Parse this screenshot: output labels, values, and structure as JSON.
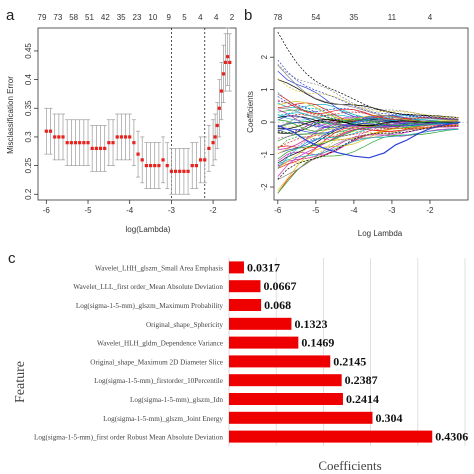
{
  "panels": {
    "a": "a",
    "b": "b",
    "c": "c"
  },
  "chart_data": [
    {
      "panel": "a",
      "type": "scatter",
      "xlabel": "log(Lambda)",
      "ylabel": "Misclassification Error",
      "xlim": [
        -6.2,
        -1.45
      ],
      "ylim": [
        0.19,
        0.49
      ],
      "xticks": [
        -6,
        -5,
        -4,
        -3,
        -2
      ],
      "yticks": [
        0.2,
        0.25,
        0.3,
        0.35,
        0.4,
        0.45
      ],
      "top_axis_labels": [
        "79",
        "73",
        "58",
        "51",
        "42",
        "35",
        "23",
        "10",
        "9",
        "5",
        "4",
        "4",
        "2"
      ],
      "vlines": [
        -3.0,
        -2.2
      ],
      "x": [
        -6.0,
        -5.9,
        -5.8,
        -5.7,
        -5.6,
        -5.5,
        -5.4,
        -5.3,
        -5.2,
        -5.1,
        -5.0,
        -4.9,
        -4.8,
        -4.7,
        -4.6,
        -4.5,
        -4.4,
        -4.3,
        -4.2,
        -4.1,
        -4.0,
        -3.9,
        -3.8,
        -3.7,
        -3.6,
        -3.5,
        -3.4,
        -3.3,
        -3.2,
        -3.1,
        -3.0,
        -2.9,
        -2.8,
        -2.7,
        -2.6,
        -2.5,
        -2.4,
        -2.3,
        -2.2,
        -2.1,
        -2.0,
        -1.95,
        -1.9,
        -1.85,
        -1.8,
        -1.75,
        -1.7,
        -1.65,
        -1.6
      ],
      "y": [
        0.31,
        0.31,
        0.3,
        0.3,
        0.3,
        0.29,
        0.29,
        0.29,
        0.29,
        0.29,
        0.29,
        0.28,
        0.28,
        0.28,
        0.28,
        0.29,
        0.29,
        0.3,
        0.3,
        0.3,
        0.3,
        0.29,
        0.27,
        0.26,
        0.25,
        0.25,
        0.25,
        0.25,
        0.26,
        0.25,
        0.24,
        0.24,
        0.24,
        0.24,
        0.24,
        0.25,
        0.25,
        0.26,
        0.26,
        0.28,
        0.29,
        0.3,
        0.32,
        0.35,
        0.38,
        0.41,
        0.43,
        0.44,
        0.43
      ],
      "err": [
        0.04,
        0.04,
        0.04,
        0.04,
        0.04,
        0.04,
        0.04,
        0.04,
        0.04,
        0.04,
        0.04,
        0.04,
        0.04,
        0.04,
        0.04,
        0.04,
        0.04,
        0.04,
        0.04,
        0.04,
        0.04,
        0.04,
        0.04,
        0.04,
        0.04,
        0.04,
        0.04,
        0.04,
        0.04,
        0.04,
        0.04,
        0.04,
        0.04,
        0.04,
        0.04,
        0.04,
        0.04,
        0.04,
        0.04,
        0.04,
        0.04,
        0.04,
        0.04,
        0.05,
        0.05,
        0.05,
        0.05,
        0.05,
        0.05
      ],
      "point_color": "#e8231e",
      "error_color": "#9a9a9a"
    },
    {
      "panel": "b",
      "type": "line",
      "xlabel": "Log Lambda",
      "ylabel": "Coefficients",
      "xlim": [
        -6.1,
        -1.0
      ],
      "ylim": [
        -2.4,
        2.9
      ],
      "xticks": [
        -6,
        -5,
        -4,
        -3,
        -2
      ],
      "yticks": [
        -2,
        -1,
        0,
        1,
        2
      ],
      "top_axis_labels": [
        "78",
        "54",
        "35",
        "11",
        "4"
      ],
      "top_axis_positions": [
        -6.0,
        -5.0,
        -4.0,
        -3.0,
        -2.0
      ],
      "path_count": 60,
      "path_colors": [
        "#000000",
        "#e8231e",
        "#27a327",
        "#2b3fd6",
        "#16b6c8",
        "#c72fc2",
        "#d9c219",
        "#8a8a8a"
      ],
      "highlight_path": {
        "color": "#2b3fd6",
        "x": [
          -6.0,
          -5.6,
          -5.2,
          -4.8,
          -4.4,
          -4.0,
          -3.6,
          -3.2,
          -2.9,
          -2.6,
          -2.3,
          -2.0,
          -1.6,
          -1.2
        ],
        "y": [
          -0.1,
          -0.3,
          -0.6,
          -0.8,
          -0.95,
          -1.05,
          -1.1,
          -0.95,
          -0.7,
          -0.55,
          -0.35,
          -0.2,
          -0.08,
          0.0
        ]
      }
    },
    {
      "panel": "c",
      "type": "bar",
      "orientation": "horizontal",
      "xlabel": "Coefficients",
      "ylabel": "Feature",
      "xlim": [
        0,
        0.5
      ],
      "grid_x": [
        0.1,
        0.2,
        0.3,
        0.4,
        0.5
      ],
      "bar_color": "#ee0000",
      "categories": [
        "Wavelet_LHH_glszm_Small Area Emphasis",
        "Wavelet_LLL_first order_Mean Absolute Deviation",
        "Log(sigma-1-5-mm)_glszm_Maximum Probability",
        "Original_shape_Sphericity",
        "Wavelet_HLH_gldm_Dependence Variance",
        "Original_shape_Maximum 2D Diameter Slice",
        "Log(sigma-1-5-mm)_firstorder_10Percentile",
        "Log(sigma-1-5-mm)_glszm_Idn",
        "Log(sigma-1-5-mm)_glszm_Joint Energy",
        "Log(sigma-1-5-mm)_first order Robust Mean Absolute Deviation"
      ],
      "values": [
        0.0317,
        0.0667,
        0.068,
        0.1323,
        0.1469,
        0.2145,
        0.2387,
        0.2414,
        0.304,
        0.4306
      ],
      "value_labels": [
        "0.0317",
        "0.0667",
        "0.068",
        "0.1323",
        "0.1469",
        "0.2145",
        "0.2387",
        "0.2414",
        "0.304",
        "0.4306"
      ]
    }
  ]
}
